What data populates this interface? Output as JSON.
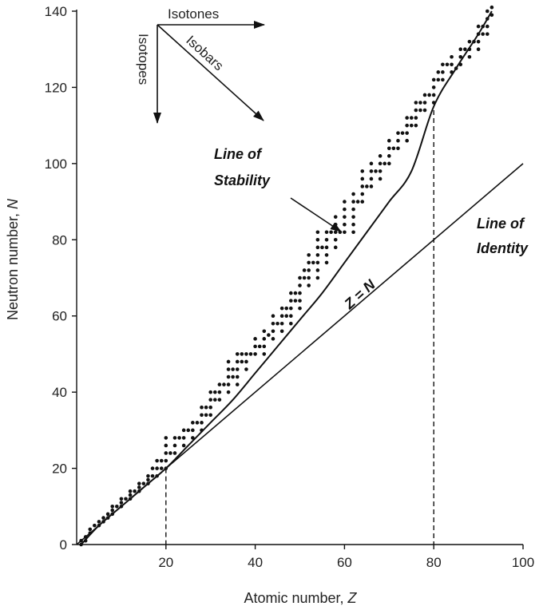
{
  "chart_data": {
    "type": "scatter",
    "title": "",
    "xlabel": "Atomic number, ",
    "xlabel_var": "Z",
    "ylabel": "Neutron number, ",
    "ylabel_var": "N",
    "xlim": [
      0,
      100
    ],
    "ylim": [
      0,
      140
    ],
    "x_ticks": [
      20,
      40,
      60,
      80,
      100
    ],
    "y_ticks": [
      0,
      20,
      40,
      60,
      80,
      100,
      120,
      140
    ],
    "grid": false,
    "annotations": {
      "isotones": "Isotones",
      "isotopes": "Isotopes",
      "isobars": "Isobars",
      "stability_line1": "Line of",
      "stability_line2": "Stability",
      "identity_line1": "Line of",
      "identity_line2": "Identity",
      "z_equals_n": "Z = N"
    },
    "reference_marks": [
      {
        "z": 20,
        "n": 20
      },
      {
        "z": 80,
        "n": 114
      }
    ],
    "line_of_identity": [
      [
        0,
        0
      ],
      [
        100,
        100
      ]
    ],
    "line_of_stability": [
      [
        1,
        0
      ],
      [
        5,
        5
      ],
      [
        10,
        10
      ],
      [
        15,
        15
      ],
      [
        20,
        20
      ],
      [
        25,
        26
      ],
      [
        30,
        32
      ],
      [
        35,
        38
      ],
      [
        40,
        45
      ],
      [
        45,
        52
      ],
      [
        50,
        59
      ],
      [
        55,
        66
      ],
      [
        60,
        74
      ],
      [
        65,
        82
      ],
      [
        70,
        90
      ],
      [
        75,
        98
      ],
      [
        80,
        115
      ],
      [
        85,
        125
      ],
      [
        90,
        134
      ],
      [
        93,
        140
      ]
    ],
    "series": [
      {
        "values": [
          [
            1,
            0
          ],
          [
            1,
            1
          ],
          [
            2,
            1
          ],
          [
            2,
            2
          ],
          [
            3,
            3
          ],
          [
            3,
            4
          ],
          [
            4,
            5
          ],
          [
            5,
            5
          ],
          [
            5,
            6
          ],
          [
            6,
            6
          ],
          [
            6,
            7
          ],
          [
            7,
            7
          ],
          [
            7,
            8
          ],
          [
            8,
            8
          ],
          [
            8,
            9
          ],
          [
            8,
            10
          ],
          [
            9,
            10
          ],
          [
            10,
            10
          ],
          [
            10,
            11
          ],
          [
            10,
            12
          ],
          [
            11,
            12
          ],
          [
            12,
            12
          ],
          [
            12,
            13
          ],
          [
            12,
            14
          ],
          [
            13,
            14
          ],
          [
            14,
            14
          ],
          [
            14,
            15
          ],
          [
            14,
            16
          ],
          [
            15,
            16
          ],
          [
            16,
            16
          ],
          [
            16,
            17
          ],
          [
            16,
            18
          ],
          [
            17,
            18
          ],
          [
            17,
            20
          ],
          [
            18,
            18
          ],
          [
            18,
            20
          ],
          [
            18,
            22
          ],
          [
            19,
            20
          ],
          [
            19,
            22
          ],
          [
            20,
            20
          ],
          [
            20,
            22
          ],
          [
            20,
            24
          ],
          [
            20,
            26
          ],
          [
            20,
            28
          ],
          [
            21,
            24
          ],
          [
            22,
            24
          ],
          [
            22,
            26
          ],
          [
            22,
            28
          ],
          [
            23,
            28
          ],
          [
            24,
            26
          ],
          [
            24,
            28
          ],
          [
            24,
            30
          ],
          [
            25,
            30
          ],
          [
            26,
            28
          ],
          [
            26,
            30
          ],
          [
            26,
            32
          ],
          [
            27,
            32
          ],
          [
            28,
            30
          ],
          [
            28,
            32
          ],
          [
            28,
            34
          ],
          [
            28,
            36
          ],
          [
            29,
            34
          ],
          [
            29,
            36
          ],
          [
            30,
            34
          ],
          [
            30,
            36
          ],
          [
            30,
            38
          ],
          [
            30,
            40
          ],
          [
            31,
            38
          ],
          [
            31,
            40
          ],
          [
            32,
            38
          ],
          [
            32,
            40
          ],
          [
            32,
            42
          ],
          [
            33,
            42
          ],
          [
            34,
            40
          ],
          [
            34,
            42
          ],
          [
            34,
            44
          ],
          [
            34,
            46
          ],
          [
            34,
            48
          ],
          [
            35,
            44
          ],
          [
            35,
            46
          ],
          [
            36,
            42
          ],
          [
            36,
            44
          ],
          [
            36,
            46
          ],
          [
            36,
            48
          ],
          [
            36,
            50
          ],
          [
            37,
            48
          ],
          [
            37,
            50
          ],
          [
            38,
            46
          ],
          [
            38,
            48
          ],
          [
            38,
            50
          ],
          [
            39,
            50
          ],
          [
            40,
            50
          ],
          [
            40,
            52
          ],
          [
            40,
            54
          ],
          [
            41,
            52
          ],
          [
            42,
            50
          ],
          [
            42,
            52
          ],
          [
            42,
            54
          ],
          [
            42,
            56
          ],
          [
            43,
            55
          ],
          [
            44,
            54
          ],
          [
            44,
            56
          ],
          [
            44,
            58
          ],
          [
            44,
            60
          ],
          [
            45,
            58
          ],
          [
            46,
            56
          ],
          [
            46,
            58
          ],
          [
            46,
            60
          ],
          [
            46,
            62
          ],
          [
            47,
            60
          ],
          [
            47,
            62
          ],
          [
            48,
            58
          ],
          [
            48,
            60
          ],
          [
            48,
            62
          ],
          [
            48,
            64
          ],
          [
            48,
            66
          ],
          [
            49,
            64
          ],
          [
            49,
            66
          ],
          [
            50,
            62
          ],
          [
            50,
            64
          ],
          [
            50,
            66
          ],
          [
            50,
            68
          ],
          [
            50,
            70
          ],
          [
            51,
            70
          ],
          [
            51,
            72
          ],
          [
            52,
            68
          ],
          [
            52,
            70
          ],
          [
            52,
            72
          ],
          [
            52,
            74
          ],
          [
            52,
            76
          ],
          [
            53,
            74
          ],
          [
            54,
            70
          ],
          [
            54,
            72
          ],
          [
            54,
            74
          ],
          [
            54,
            76
          ],
          [
            54,
            78
          ],
          [
            54,
            80
          ],
          [
            54,
            82
          ],
          [
            55,
            78
          ],
          [
            56,
            74
          ],
          [
            56,
            76
          ],
          [
            56,
            78
          ],
          [
            56,
            80
          ],
          [
            56,
            82
          ],
          [
            57,
            82
          ],
          [
            58,
            78
          ],
          [
            58,
            80
          ],
          [
            58,
            82
          ],
          [
            58,
            84
          ],
          [
            58,
            86
          ],
          [
            59,
            82
          ],
          [
            60,
            82
          ],
          [
            60,
            84
          ],
          [
            60,
            86
          ],
          [
            60,
            88
          ],
          [
            60,
            90
          ],
          [
            62,
            82
          ],
          [
            62,
            84
          ],
          [
            62,
            86
          ],
          [
            62,
            88
          ],
          [
            62,
            90
          ],
          [
            62,
            92
          ],
          [
            63,
            90
          ],
          [
            64,
            90
          ],
          [
            64,
            92
          ],
          [
            64,
            94
          ],
          [
            64,
            96
          ],
          [
            64,
            98
          ],
          [
            65,
            94
          ],
          [
            66,
            94
          ],
          [
            66,
            96
          ],
          [
            66,
            98
          ],
          [
            66,
            100
          ],
          [
            67,
            98
          ],
          [
            68,
            96
          ],
          [
            68,
            98
          ],
          [
            68,
            100
          ],
          [
            68,
            102
          ],
          [
            69,
            100
          ],
          [
            70,
            100
          ],
          [
            70,
            102
          ],
          [
            70,
            104
          ],
          [
            70,
            106
          ],
          [
            71,
            104
          ],
          [
            72,
            104
          ],
          [
            72,
            106
          ],
          [
            72,
            108
          ],
          [
            73,
            108
          ],
          [
            74,
            106
          ],
          [
            74,
            108
          ],
          [
            74,
            110
          ],
          [
            74,
            112
          ],
          [
            75,
            110
          ],
          [
            75,
            112
          ],
          [
            76,
            110
          ],
          [
            76,
            112
          ],
          [
            76,
            114
          ],
          [
            76,
            116
          ],
          [
            77,
            114
          ],
          [
            77,
            116
          ],
          [
            78,
            114
          ],
          [
            78,
            116
          ],
          [
            78,
            118
          ],
          [
            79,
            118
          ],
          [
            80,
            116
          ],
          [
            80,
            118
          ],
          [
            80,
            120
          ],
          [
            80,
            122
          ],
          [
            81,
            122
          ],
          [
            81,
            124
          ],
          [
            82,
            122
          ],
          [
            82,
            124
          ],
          [
            82,
            126
          ],
          [
            83,
            126
          ],
          [
            84,
            124
          ],
          [
            84,
            126
          ],
          [
            84,
            128
          ],
          [
            85,
            125
          ],
          [
            86,
            126
          ],
          [
            86,
            128
          ],
          [
            86,
            130
          ],
          [
            87,
            130
          ],
          [
            88,
            128
          ],
          [
            88,
            130
          ],
          [
            88,
            132
          ],
          [
            89,
            132
          ],
          [
            90,
            130
          ],
          [
            90,
            132
          ],
          [
            90,
            134
          ],
          [
            90,
            136
          ],
          [
            91,
            134
          ],
          [
            91,
            136
          ],
          [
            92,
            134
          ],
          [
            92,
            136
          ],
          [
            92,
            138
          ],
          [
            92,
            140
          ],
          [
            93,
            139
          ],
          [
            93,
            141
          ]
        ]
      }
    ]
  }
}
